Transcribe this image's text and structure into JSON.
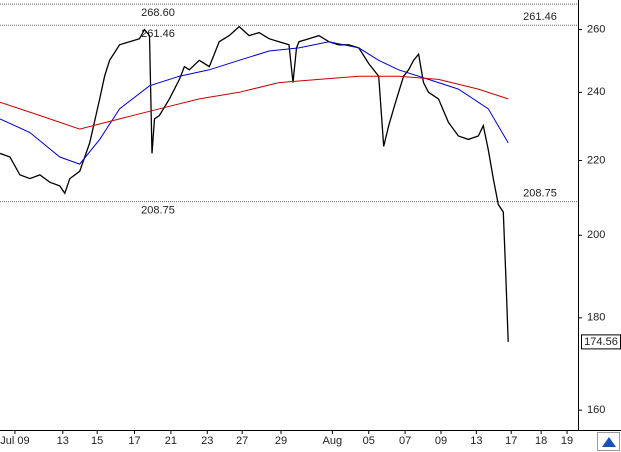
{
  "chart_data": {
    "type": "line",
    "log_scale": true,
    "ylim": [
      156,
      270
    ],
    "yticks": [
      160,
      180,
      200,
      220,
      240,
      260
    ],
    "xlim": [
      0,
      116
    ],
    "xticks": [
      {
        "value": 3,
        "label": "Jul 09"
      },
      {
        "value": 12.6,
        "label": "13"
      },
      {
        "value": 19.5,
        "label": "15"
      },
      {
        "value": 27,
        "label": "17"
      },
      {
        "value": 34.3,
        "label": "21"
      },
      {
        "value": 41.6,
        "label": "23"
      },
      {
        "value": 48.6,
        "label": "27"
      },
      {
        "value": 56.4,
        "label": "29"
      },
      {
        "value": 66.7,
        "label": "Aug"
      },
      {
        "value": 74,
        "label": "05"
      },
      {
        "value": 81.3,
        "label": "07"
      },
      {
        "value": 88.5,
        "label": "09"
      },
      {
        "value": 95.6,
        "label": "13"
      },
      {
        "value": 102.6,
        "label": "17"
      },
      {
        "value": 108.6,
        "label": "18"
      },
      {
        "value": 113.8,
        "label": "19"
      }
    ],
    "reference_lines": [
      {
        "value": 268.6,
        "label": "268.60"
      },
      261.46,
      208.75
    ],
    "series": [
      {
        "color": "#000000",
        "x": [
          0,
          2,
          4,
          6,
          8,
          10,
          12,
          13,
          14,
          16,
          18,
          20,
          21,
          22,
          24,
          26,
          28,
          29,
          30,
          30.5,
          31,
          32,
          34,
          36,
          37,
          38,
          40,
          42,
          43,
          44,
          46,
          48,
          50,
          52,
          54,
          56,
          58,
          58.8,
          59.5,
          60,
          62,
          64,
          66,
          68,
          70,
          72,
          74,
          76,
          77,
          78,
          79,
          80,
          81,
          82,
          83,
          84,
          85,
          86,
          88,
          90,
          92,
          94,
          96,
          97,
          98,
          99,
          100,
          101,
          101.5,
          102
        ],
        "values": [
          222,
          221,
          216,
          215,
          216,
          214,
          213,
          211,
          215,
          217,
          225,
          238,
          245,
          250,
          255,
          256,
          257,
          260,
          258,
          222,
          232,
          233,
          238,
          244,
          248,
          247,
          250,
          248,
          252,
          256,
          258,
          261,
          258,
          259,
          257,
          256,
          255,
          243,
          254,
          256,
          257,
          258,
          256,
          255,
          255,
          254,
          249,
          245,
          224,
          230,
          235,
          240,
          245,
          247,
          250,
          252,
          243,
          240,
          238,
          231,
          227,
          226,
          227,
          230,
          223,
          215,
          208,
          206,
          190,
          174.56
        ]
      },
      {
        "color": "#0000cc",
        "x": [
          0,
          6,
          12,
          16,
          20,
          24,
          30,
          36,
          42,
          48,
          54,
          60,
          66,
          72,
          76,
          80,
          86,
          92,
          98,
          102
        ],
        "values": [
          232,
          228,
          221,
          219,
          226,
          235,
          242,
          245,
          247,
          250,
          253,
          254,
          256,
          254,
          250,
          247,
          244,
          241,
          235,
          225
        ]
      },
      {
        "color": "#cc0000",
        "x": [
          0,
          8,
          16,
          24,
          32,
          40,
          48,
          56,
          64,
          72,
          80,
          88,
          96,
          102
        ],
        "values": [
          237,
          233,
          229,
          232,
          235,
          238,
          240,
          243,
          244,
          245,
          245,
          244,
          241,
          238
        ]
      }
    ]
  }
}
